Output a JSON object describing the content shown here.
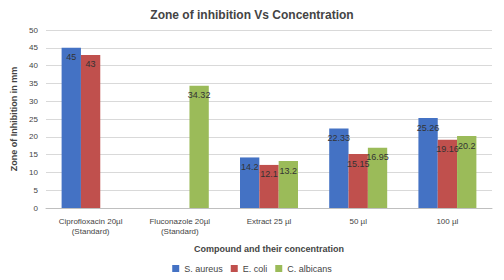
{
  "chart_data": {
    "type": "bar",
    "title": "Zone of inhibition Vs Concentration",
    "x_label": "Compound and their concentration",
    "y_label": "Zone of Inhibition in mm",
    "categories": [
      "Ciprofloxacin 20µl\n(Standard)",
      "Fluconazole 20µl\n(Standard)",
      "Extract 25 µl",
      "50 µl",
      "100 µl"
    ],
    "series": [
      {
        "name": "S. aureus",
        "color": "#4472c4",
        "values": [
          45,
          null,
          14.2,
          22.33,
          25.26
        ]
      },
      {
        "name": "E. coli",
        "color": "#c0504d",
        "values": [
          43,
          null,
          12.1,
          15.15,
          19.16
        ]
      },
      {
        "name": "C. albicans",
        "color": "#9bbb59",
        "values": [
          null,
          34.32,
          13.2,
          16.95,
          20.2
        ]
      }
    ],
    "ylim": [
      0,
      50
    ],
    "yticks": [
      0,
      5,
      10,
      15,
      20,
      25,
      30,
      35,
      40,
      45,
      50
    ],
    "grid": true,
    "legend": "bottom",
    "data_labels": true
  }
}
